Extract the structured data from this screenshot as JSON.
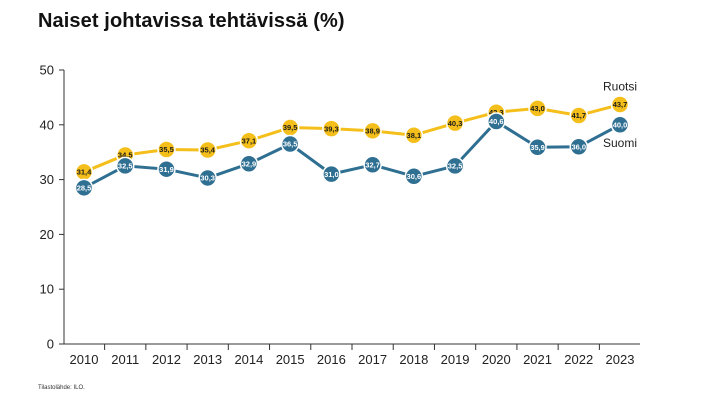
{
  "chart_data": {
    "type": "line",
    "title": "Naiset johtavissa tehtävissä (%)",
    "xlabel": "",
    "ylabel": "",
    "categories": [
      "2010",
      "2011",
      "2012",
      "2013",
      "2014",
      "2015",
      "2016",
      "2017",
      "2018",
      "2019",
      "2020",
      "2021",
      "2022",
      "2023"
    ],
    "ylim": [
      0,
      50
    ],
    "yticks": [
      0,
      10,
      20,
      30,
      40,
      50
    ],
    "grid": false,
    "series": [
      {
        "name": "Ruotsi",
        "color": "#f5bf1b",
        "values": [
          31.4,
          34.5,
          35.5,
          35.4,
          37.1,
          39.5,
          39.3,
          38.9,
          38.1,
          40.3,
          42.3,
          43.0,
          41.7,
          43.7
        ],
        "labels": [
          "31,4",
          "34,5",
          "35,5",
          "35,4",
          "37,1",
          "39,5",
          "39,3",
          "38,9",
          "38,1",
          "40,3",
          "42,3",
          "43,0",
          "41,7",
          "43,7"
        ]
      },
      {
        "name": "Suomi",
        "color": "#2f6f92",
        "values": [
          28.5,
          32.5,
          31.9,
          30.3,
          32.9,
          36.5,
          31.0,
          32.7,
          30.6,
          32.5,
          40.6,
          35.9,
          36.0,
          40.0
        ],
        "labels": [
          "28,5",
          "32,5",
          "31,9",
          "30,3",
          "32,9",
          "36,5",
          "31,0",
          "32,7",
          "30,6",
          "32,5",
          "40,6",
          "35,9",
          "36,0",
          "40,0"
        ]
      }
    ]
  },
  "source": "Tilastolähde: ILO."
}
